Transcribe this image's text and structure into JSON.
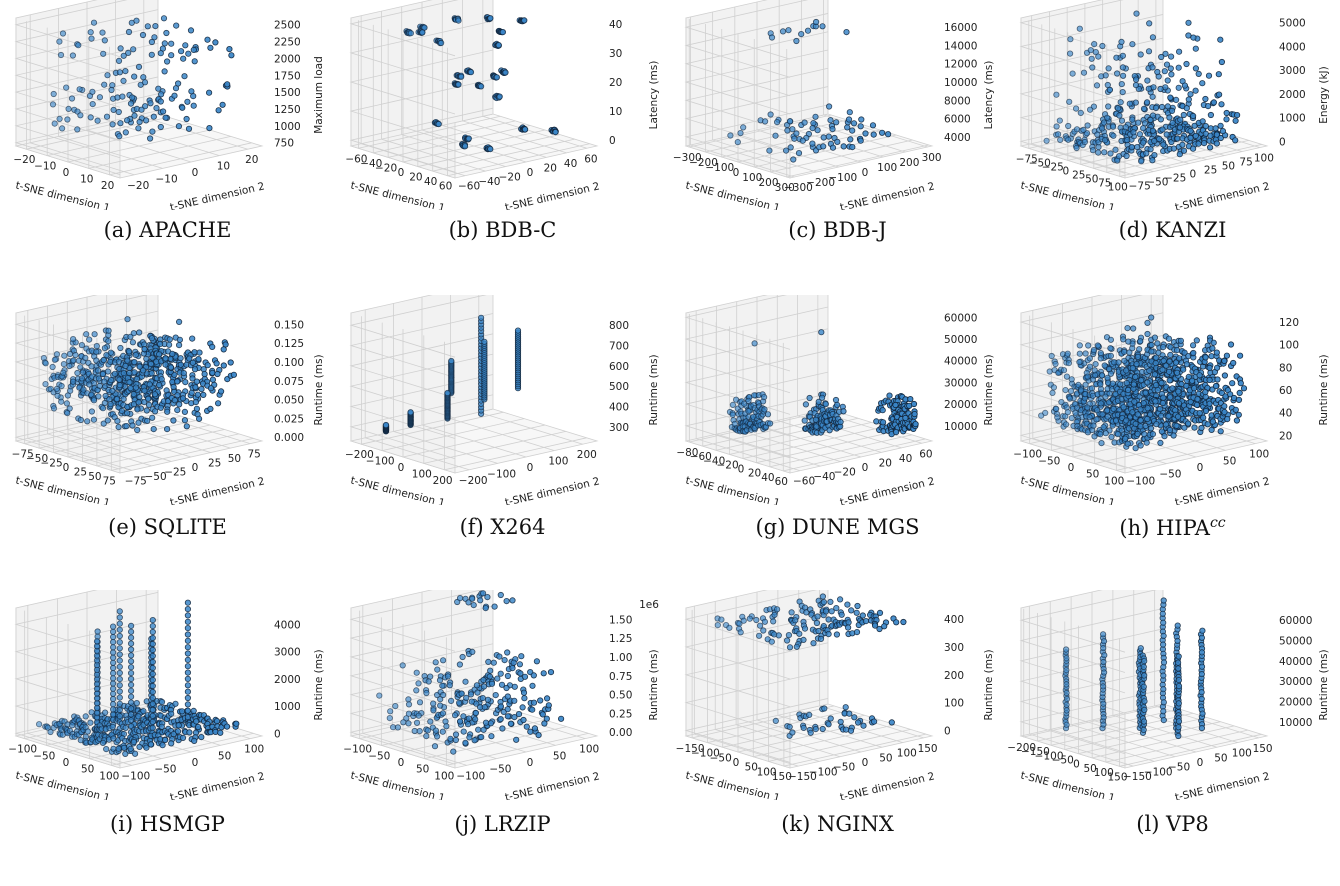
{
  "figure": {
    "point_color": "#3a86c8",
    "edge_color": "#10243a",
    "pane_color": "#f2f2f2",
    "grid_color": "#d0d0d0"
  },
  "chart_data": [
    {
      "id": "a",
      "caption": "(a) APACHE",
      "type": "scatter3d",
      "xlabel": "t-SNE dimension 1",
      "ylabel": "t-SNE dimension 2",
      "zlabel": "Maximum load",
      "xticks": [
        "−20",
        "−10",
        "0",
        "10",
        "20"
      ],
      "yticks": [
        "−20",
        "−10",
        "0",
        "10",
        "20"
      ],
      "zticks": [
        "750",
        "1000",
        "1250",
        "1500",
        "1750",
        "2000",
        "2250",
        "2500"
      ],
      "xlim": [
        -25,
        25
      ],
      "ylim": [
        -25,
        25
      ],
      "zlim": [
        700,
        2600
      ],
      "zoffset": "",
      "pattern": "apache"
    },
    {
      "id": "b",
      "caption": "(b) BDB-C",
      "type": "scatter3d",
      "xlabel": "t-SNE dimension 1",
      "ylabel": "t-SNE dimension 2",
      "zlabel": "Latency (ms)",
      "xticks": [
        "−60",
        "−40",
        "−20",
        "0",
        "20",
        "40",
        "60"
      ],
      "yticks": [
        "−60",
        "−40",
        "−20",
        "0",
        "20",
        "40",
        "60"
      ],
      "zticks": [
        "0",
        "10",
        "20",
        "30",
        "40"
      ],
      "xlim": [
        -70,
        70
      ],
      "ylim": [
        -70,
        70
      ],
      "zlim": [
        -2,
        42
      ],
      "zoffset": "",
      "pattern": "bdbc"
    },
    {
      "id": "c",
      "caption": "(c) BDB-J",
      "type": "scatter3d",
      "xlabel": "t-SNE dimension 1",
      "ylabel": "t-SNE dimension 2",
      "zlabel": "Latency (ms)",
      "xticks": [
        "−300",
        "−200",
        "−100",
        "0",
        "100",
        "200",
        "300"
      ],
      "yticks": [
        "−300",
        "−200",
        "−100",
        "0",
        "100",
        "200",
        "300"
      ],
      "zticks": [
        "4000",
        "6000",
        "8000",
        "10000",
        "12000",
        "14000",
        "16000"
      ],
      "xlim": [
        -320,
        320
      ],
      "ylim": [
        -320,
        320
      ],
      "zlim": [
        3000,
        17000
      ],
      "zoffset": "",
      "pattern": "bdbj"
    },
    {
      "id": "d",
      "caption": "(d) KANZI",
      "type": "scatter3d",
      "xlabel": "t-SNE dimension 1",
      "ylabel": "t-SNE dimension 2",
      "zlabel": "Energy (kJ)",
      "xticks": [
        "−75",
        "−50",
        "−25",
        "0",
        "25",
        "50",
        "75",
        "100"
      ],
      "yticks": [
        "−75",
        "−50",
        "−25",
        "0",
        "25",
        "50",
        "75",
        "100"
      ],
      "zticks": [
        "0",
        "1000",
        "2000",
        "3000",
        "4000",
        "5000"
      ],
      "xlim": [
        -90,
        110
      ],
      "ylim": [
        -90,
        110
      ],
      "zlim": [
        -200,
        5200
      ],
      "zoffset": "",
      "pattern": "kanzi"
    },
    {
      "id": "e",
      "caption": "(e) SQLITE",
      "type": "scatter3d",
      "xlabel": "t-SNE dimension 1",
      "ylabel": "t-SNE dimension 2",
      "zlabel": "Runtime (ms)",
      "xticks": [
        "−75",
        "−50",
        "−25",
        "0",
        "25",
        "50",
        "75"
      ],
      "yticks": [
        "−75",
        "−50",
        "−25",
        "0",
        "25",
        "50",
        "75"
      ],
      "zticks": [
        "0.000",
        "0.025",
        "0.050",
        "0.075",
        "0.100",
        "0.125",
        "0.150"
      ],
      "xlim": [
        -90,
        90
      ],
      "ylim": [
        -90,
        90
      ],
      "zlim": [
        -0.005,
        0.165
      ],
      "zoffset": "",
      "pattern": "sqlite"
    },
    {
      "id": "f",
      "caption": "(f) X264",
      "type": "scatter3d",
      "xlabel": "t-SNE dimension 1",
      "ylabel": "t-SNE dimension 2",
      "zlabel": "Runtime (ms)",
      "xticks": [
        "−200",
        "−100",
        "0",
        "100",
        "200"
      ],
      "yticks": [
        "−200",
        "−100",
        "0",
        "100",
        "200"
      ],
      "zticks": [
        "300",
        "400",
        "500",
        "600",
        "700",
        "800"
      ],
      "xlim": [
        -250,
        250
      ],
      "ylim": [
        -250,
        250
      ],
      "zlim": [
        230,
        860
      ],
      "zoffset": "",
      "pattern": "x264"
    },
    {
      "id": "g",
      "caption": "(g) DUNE MGS",
      "type": "scatter3d",
      "xlabel": "t-SNE dimension 1",
      "ylabel": "t-SNE dimension 2",
      "zlabel": "Runtime (ms)",
      "xticks": [
        "−80",
        "−60",
        "−40",
        "−20",
        "0",
        "20",
        "40",
        "60"
      ],
      "yticks": [
        "−60",
        "−40",
        "−20",
        "0",
        "20",
        "40",
        "60"
      ],
      "zticks": [
        "10000",
        "20000",
        "30000",
        "40000",
        "50000",
        "60000"
      ],
      "xlim": [
        -85,
        70
      ],
      "ylim": [
        -70,
        70
      ],
      "zlim": [
        3000,
        62000
      ],
      "zoffset": "",
      "pattern": "dune"
    },
    {
      "id": "h",
      "caption": "(h) HIPA",
      "caption_sup": "cc",
      "type": "scatter3d",
      "xlabel": "t-SNE dimension 1",
      "ylabel": "t-SNE dimension 2",
      "zlabel": "Runtime (ms)",
      "xticks": [
        "−100",
        "−50",
        "0",
        "50",
        "100"
      ],
      "yticks": [
        "−100",
        "−50",
        "0",
        "50",
        "100"
      ],
      "zticks": [
        "20",
        "40",
        "60",
        "80",
        "100",
        "120"
      ],
      "xlim": [
        -120,
        120
      ],
      "ylim": [
        -120,
        120
      ],
      "zlim": [
        15,
        128
      ],
      "zoffset": "",
      "pattern": "hipa"
    },
    {
      "id": "i",
      "caption": "(i) HSMGP",
      "type": "scatter3d",
      "xlabel": "t-SNE dimension 1",
      "ylabel": "t-SNE dimension 2",
      "zlabel": "Runtime (ms)",
      "xticks": [
        "−100",
        "−50",
        "0",
        "50",
        "100"
      ],
      "yticks": [
        "−100",
        "−50",
        "0",
        "50",
        "100"
      ],
      "zticks": [
        "0",
        "1000",
        "2000",
        "3000",
        "4000"
      ],
      "xlim": [
        -120,
        120
      ],
      "ylim": [
        -120,
        120
      ],
      "zlim": [
        -100,
        4600
      ],
      "zoffset": "",
      "pattern": "hsmgp"
    },
    {
      "id": "j",
      "caption": "(j) LRZIP",
      "type": "scatter3d",
      "xlabel": "t-SNE dimension 1",
      "ylabel": "t-SNE dimension 2",
      "zlabel": "Runtime (ms)",
      "xticks": [
        "−100",
        "−50",
        "0",
        "50",
        "100"
      ],
      "yticks": [
        "−100",
        "−50",
        "0",
        "50",
        "100"
      ],
      "zticks": [
        "0.00",
        "0.25",
        "0.50",
        "0.75",
        "1.00",
        "1.25",
        "1.50"
      ],
      "xlim": [
        -120,
        120
      ],
      "ylim": [
        -120,
        120
      ],
      "zlim": [
        -0.05,
        1.65
      ],
      "zoffset": "1e6",
      "pattern": "lrzip"
    },
    {
      "id": "k",
      "caption": "(k) NGINX",
      "type": "scatter3d",
      "xlabel": "t-SNE dimension 1",
      "ylabel": "t-SNE dimension 2",
      "zlabel": "Runtime (ms)",
      "xticks": [
        "−150",
        "−100",
        "−50",
        "0",
        "50",
        "100",
        "150"
      ],
      "yticks": [
        "−150",
        "−100",
        "−50",
        "0",
        "50",
        "100",
        "150"
      ],
      "zticks": [
        "0",
        "100",
        "200",
        "300",
        "400"
      ],
      "xlim": [
        -170,
        170
      ],
      "ylim": [
        -170,
        170
      ],
      "zlim": [
        -20,
        440
      ],
      "zoffset": "",
      "pattern": "nginx"
    },
    {
      "id": "l",
      "caption": "(l) VP8",
      "type": "scatter3d",
      "xlabel": "t-SNE dimension 1",
      "ylabel": "t-SNE dimension 2",
      "zlabel": "Runtime (ms)",
      "xticks": [
        "−200",
        "−150",
        "−100",
        "−50",
        "0",
        "50",
        "100",
        "150"
      ],
      "yticks": [
        "−150",
        "−100",
        "−50",
        "0",
        "50",
        "100",
        "150"
      ],
      "zticks": [
        "10000",
        "20000",
        "30000",
        "40000",
        "50000",
        "60000"
      ],
      "xlim": [
        -210,
        170
      ],
      "ylim": [
        -170,
        170
      ],
      "zlim": [
        3000,
        66000
      ],
      "zoffset": "",
      "pattern": "vp8"
    }
  ]
}
